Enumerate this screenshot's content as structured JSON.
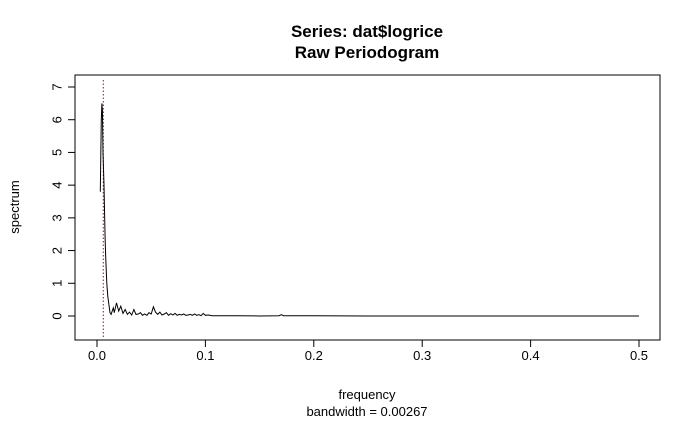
{
  "chart_data": {
    "type": "line",
    "title": "Series: dat$logrice",
    "subtitle": "Raw Periodogram",
    "xlabel": "frequency",
    "xlabel_sub": "bandwidth = 0.00267",
    "ylabel": "spectrum",
    "xlim": [
      0,
      0.5
    ],
    "ylim": [
      0,
      7
    ],
    "xticks": [
      0.0,
      0.1,
      0.2,
      0.3,
      0.4,
      0.5
    ],
    "xtick_labels": [
      "0.0",
      "0.1",
      "0.2",
      "0.3",
      "0.4",
      "0.5"
    ],
    "yticks": [
      0,
      1,
      2,
      3,
      4,
      5,
      6,
      7
    ],
    "ytick_labels": [
      "0",
      "1",
      "2",
      "3",
      "4",
      "5",
      "6",
      "7"
    ],
    "grid": false,
    "series": [
      {
        "color": "#000000",
        "x": [
          0.003,
          0.0035,
          0.004,
          0.0045,
          0.005,
          0.0055,
          0.006,
          0.0065,
          0.007,
          0.0075,
          0.008,
          0.009,
          0.01,
          0.011,
          0.012,
          0.013,
          0.014,
          0.015,
          0.016,
          0.018,
          0.02,
          0.022,
          0.024,
          0.026,
          0.028,
          0.03,
          0.032,
          0.034,
          0.036,
          0.038,
          0.04,
          0.042,
          0.044,
          0.046,
          0.048,
          0.05,
          0.052,
          0.054,
          0.056,
          0.058,
          0.06,
          0.062,
          0.064,
          0.066,
          0.068,
          0.07,
          0.072,
          0.074,
          0.076,
          0.078,
          0.08,
          0.082,
          0.084,
          0.086,
          0.088,
          0.09,
          0.092,
          0.094,
          0.096,
          0.098,
          0.1,
          0.103,
          0.106,
          0.11,
          0.13,
          0.15,
          0.168,
          0.17,
          0.172,
          0.2,
          0.25,
          0.3,
          0.35,
          0.4,
          0.45,
          0.5
        ],
        "y": [
          3.8,
          4.9,
          6.0,
          6.5,
          6.3,
          5.0,
          4.5,
          4.0,
          3.1,
          2.4,
          1.8,
          1.0,
          0.6,
          0.35,
          0.1,
          0.05,
          0.15,
          0.25,
          0.1,
          0.4,
          0.15,
          0.3,
          0.08,
          0.2,
          0.05,
          0.12,
          0.03,
          0.2,
          0.05,
          0.06,
          0.1,
          0.02,
          0.06,
          0.02,
          0.1,
          0.06,
          0.28,
          0.12,
          0.05,
          0.12,
          0.03,
          0.06,
          0.1,
          0.02,
          0.07,
          0.03,
          0.08,
          0.02,
          0.05,
          0.03,
          0.06,
          0.02,
          0.03,
          0.05,
          0.02,
          0.06,
          0.02,
          0.04,
          0.01,
          0.08,
          0.02,
          0.03,
          0.01,
          0.01,
          0.01,
          0.0,
          0.01,
          0.04,
          0.01,
          0.01,
          0.0,
          0.0,
          0.0,
          0.0,
          0.0,
          0.0
        ]
      }
    ],
    "marker_line": {
      "x": 0.0058,
      "color": "#cc0000",
      "style": "dotted"
    }
  }
}
